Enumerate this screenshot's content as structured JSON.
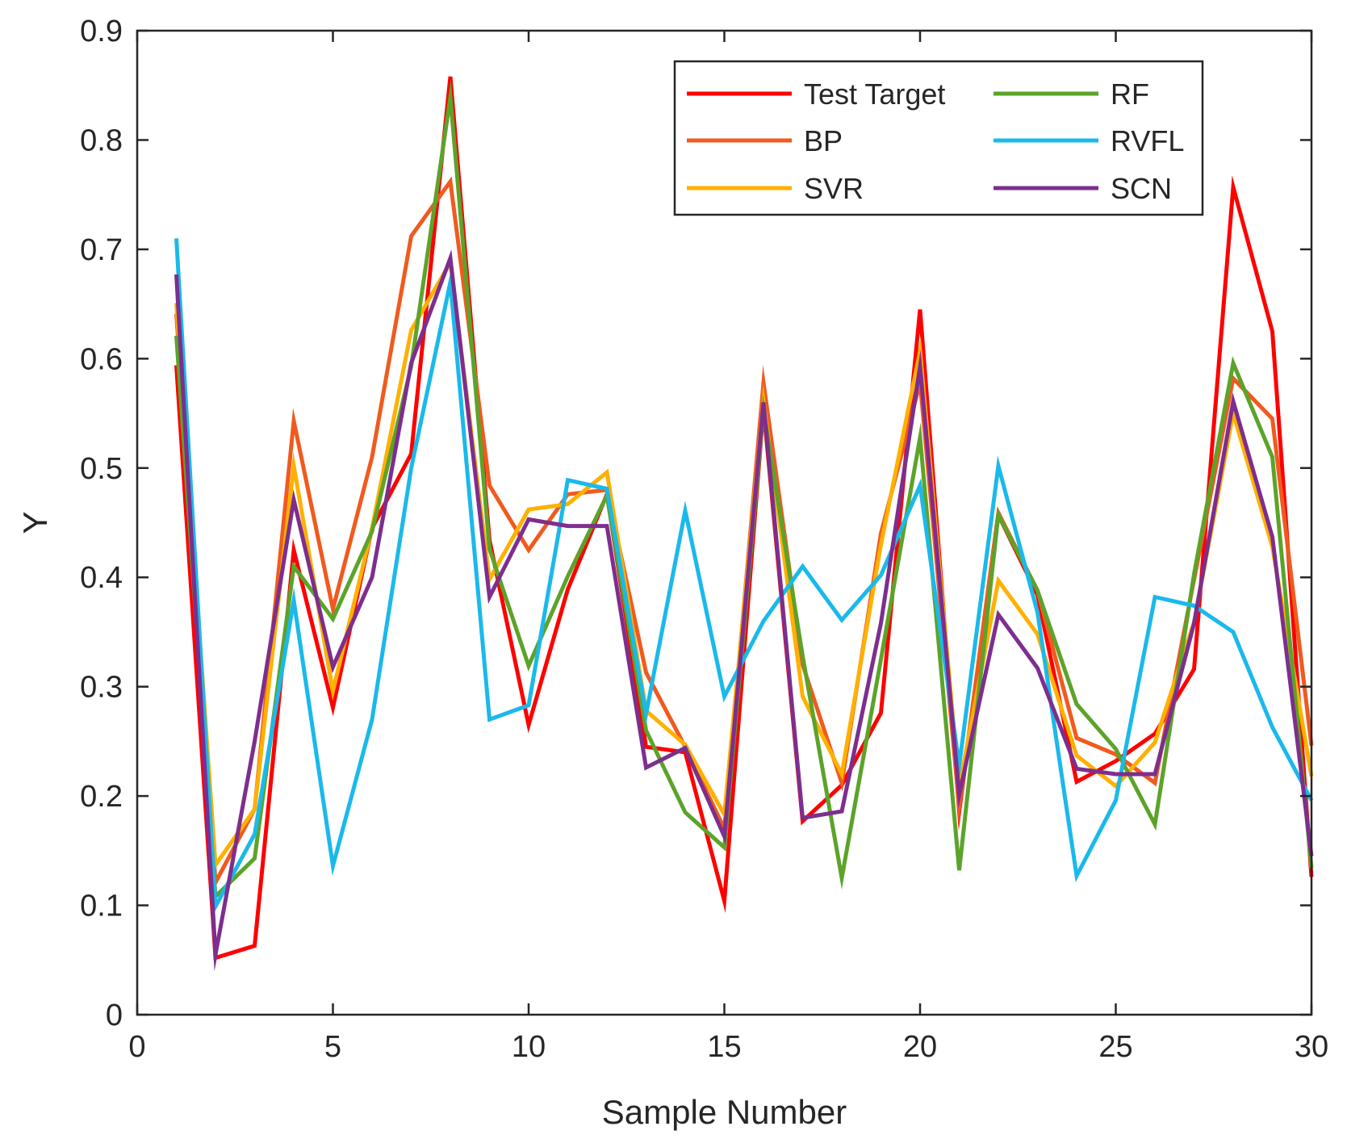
{
  "chart_data": {
    "type": "line",
    "title": "",
    "xlabel": "Sample Number",
    "ylabel": "Y",
    "xlim": [
      0,
      30
    ],
    "ylim": [
      0,
      0.9
    ],
    "xticks": [
      0,
      5,
      10,
      15,
      20,
      25,
      30
    ],
    "yticks": [
      0,
      0.1,
      0.2,
      0.3,
      0.4,
      0.5,
      0.6,
      0.7,
      0.8,
      0.9
    ],
    "xtick_labels": [
      "0",
      "5",
      "10",
      "15",
      "20",
      "25",
      "30"
    ],
    "ytick_labels": [
      "0",
      "0.1",
      "0.2",
      "0.3",
      "0.4",
      "0.5",
      "0.6",
      "0.7",
      "0.8",
      "0.9"
    ],
    "grid": false,
    "legend_position": "top-right",
    "x": [
      1,
      2,
      3,
      4,
      5,
      6,
      7,
      8,
      9,
      10,
      11,
      12,
      13,
      14,
      15,
      16,
      17,
      18,
      19,
      20,
      21,
      22,
      23,
      24,
      25,
      26,
      27,
      28,
      29,
      30
    ],
    "series": [
      {
        "name": "Test Target",
        "color": "#ff0000",
        "values": [
          0.594,
          0.052,
          0.063,
          0.425,
          0.281,
          0.445,
          0.513,
          0.858,
          0.434,
          0.265,
          0.389,
          0.476,
          0.245,
          0.24,
          0.104,
          0.555,
          0.177,
          0.21,
          0.276,
          0.645,
          0.186,
          0.457,
          0.384,
          0.213,
          0.232,
          0.257,
          0.316,
          0.757,
          0.625,
          0.126
        ]
      },
      {
        "name": "BP",
        "color": "#f05a1f",
        "values": [
          0.641,
          0.121,
          0.188,
          0.543,
          0.371,
          0.51,
          0.712,
          0.762,
          0.484,
          0.425,
          0.476,
          0.48,
          0.313,
          0.245,
          0.17,
          0.578,
          0.32,
          0.212,
          0.44,
          0.578,
          0.19,
          0.459,
          0.388,
          0.253,
          0.238,
          0.212,
          0.398,
          0.582,
          0.545,
          0.246
        ]
      },
      {
        "name": "SVR",
        "color": "#ffb000",
        "values": [
          0.651,
          0.137,
          0.188,
          0.502,
          0.296,
          0.445,
          0.626,
          0.688,
          0.398,
          0.462,
          0.467,
          0.496,
          0.278,
          0.247,
          0.183,
          0.561,
          0.291,
          0.22,
          0.43,
          0.607,
          0.208,
          0.397,
          0.348,
          0.237,
          0.209,
          0.249,
          0.359,
          0.55,
          0.428,
          0.218
        ]
      },
      {
        "name": "RF",
        "color": "#5ca32a",
        "values": [
          0.621,
          0.108,
          0.143,
          0.41,
          0.362,
          0.442,
          0.593,
          0.839,
          0.426,
          0.319,
          0.401,
          0.475,
          0.26,
          0.185,
          0.153,
          0.553,
          0.328,
          0.125,
          0.325,
          0.528,
          0.132,
          0.457,
          0.388,
          0.284,
          0.243,
          0.174,
          0.403,
          0.596,
          0.51,
          0.134
        ]
      },
      {
        "name": "RVFL",
        "color": "#1ab9ea",
        "values": [
          0.71,
          0.099,
          0.165,
          0.379,
          0.136,
          0.27,
          0.5,
          0.67,
          0.27,
          0.283,
          0.489,
          0.481,
          0.275,
          0.461,
          0.291,
          0.36,
          0.41,
          0.361,
          0.402,
          0.484,
          0.228,
          0.502,
          0.368,
          0.127,
          0.196,
          0.382,
          0.374,
          0.35,
          0.263,
          0.196
        ]
      },
      {
        "name": "SCN",
        "color": "#7d2e8e",
        "values": [
          0.677,
          0.055,
          0.25,
          0.471,
          0.318,
          0.4,
          0.596,
          0.692,
          0.382,
          0.453,
          0.447,
          0.447,
          0.226,
          0.244,
          0.163,
          0.56,
          0.18,
          0.186,
          0.358,
          0.593,
          0.201,
          0.366,
          0.317,
          0.225,
          0.22,
          0.22,
          0.358,
          0.561,
          0.437,
          0.145
        ]
      }
    ]
  }
}
